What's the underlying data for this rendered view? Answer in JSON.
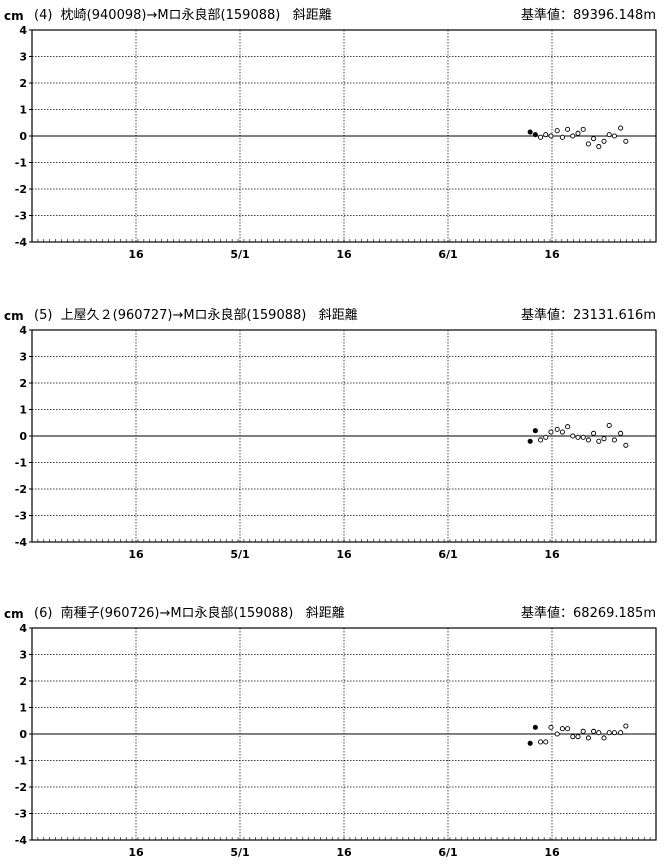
{
  "chart_data": [
    {
      "type": "scatter",
      "unit": "cm",
      "title": "(4)  枕崎(940098)→Mロ永良部(159088)   斜距離",
      "reference": "基準値：89396.148m",
      "yticks": [
        "4",
        "3",
        "2",
        "1",
        "0",
        "-1",
        "-2",
        "-3",
        "-4"
      ],
      "ylim": [
        -4,
        4
      ],
      "xlim": [
        0,
        6
      ],
      "xticks": [
        {
          "x": 1,
          "label": "16"
        },
        {
          "x": 2,
          "label": "5/1"
        },
        {
          "x": 3,
          "label": "16"
        },
        {
          "x": 4,
          "label": "6/1"
        },
        {
          "x": 5,
          "label": "16"
        }
      ],
      "grid": true,
      "series": [
        {
          "style": "filled",
          "points": [
            [
              4.79,
              0.15
            ],
            [
              4.84,
              0.05
            ]
          ]
        },
        {
          "style": "open",
          "points": [
            [
              4.89,
              -0.05
            ],
            [
              4.94,
              0.05
            ],
            [
              4.99,
              0.0
            ],
            [
              5.05,
              0.2
            ],
            [
              5.1,
              -0.05
            ],
            [
              5.15,
              0.25
            ],
            [
              5.2,
              0.0
            ],
            [
              5.25,
              0.1
            ],
            [
              5.3,
              0.25
            ],
            [
              5.35,
              -0.3
            ],
            [
              5.4,
              -0.1
            ],
            [
              5.45,
              -0.4
            ],
            [
              5.5,
              -0.2
            ],
            [
              5.55,
              0.05
            ],
            [
              5.6,
              0.0
            ],
            [
              5.66,
              0.3
            ],
            [
              5.71,
              -0.2
            ]
          ]
        }
      ]
    },
    {
      "type": "scatter",
      "unit": "cm",
      "title": "(5)  上屋久２(960727)→Mロ永良部(159088)   斜距離",
      "reference": "基準値：23131.616m",
      "yticks": [
        "4",
        "3",
        "2",
        "1",
        "0",
        "-1",
        "-2",
        "-3",
        "-4"
      ],
      "ylim": [
        -4,
        4
      ],
      "xlim": [
        0,
        6
      ],
      "xticks": [
        {
          "x": 1,
          "label": "16"
        },
        {
          "x": 2,
          "label": "5/1"
        },
        {
          "x": 3,
          "label": "16"
        },
        {
          "x": 4,
          "label": "6/1"
        },
        {
          "x": 5,
          "label": "16"
        }
      ],
      "grid": true,
      "series": [
        {
          "style": "filled",
          "points": [
            [
              4.79,
              -0.2
            ],
            [
              4.84,
              0.2
            ]
          ]
        },
        {
          "style": "open",
          "points": [
            [
              4.89,
              -0.15
            ],
            [
              4.94,
              -0.05
            ],
            [
              4.99,
              0.15
            ],
            [
              5.05,
              0.25
            ],
            [
              5.1,
              0.15
            ],
            [
              5.15,
              0.35
            ],
            [
              5.2,
              0.0
            ],
            [
              5.25,
              -0.05
            ],
            [
              5.3,
              -0.05
            ],
            [
              5.35,
              -0.15
            ],
            [
              5.4,
              0.1
            ],
            [
              5.45,
              -0.2
            ],
            [
              5.5,
              -0.1
            ],
            [
              5.55,
              0.4
            ],
            [
              5.6,
              -0.15
            ],
            [
              5.66,
              0.1
            ],
            [
              5.71,
              -0.35
            ]
          ]
        }
      ]
    },
    {
      "type": "scatter",
      "unit": "cm",
      "title": "(6)  南種子(960726)→Mロ永良部(159088)   斜距離",
      "reference": "基準値：68269.185m",
      "yticks": [
        "4",
        "3",
        "2",
        "1",
        "0",
        "-1",
        "-2",
        "-3",
        "-4"
      ],
      "ylim": [
        -4,
        4
      ],
      "xlim": [
        0,
        6
      ],
      "xticks": [
        {
          "x": 1,
          "label": "16"
        },
        {
          "x": 2,
          "label": "5/1"
        },
        {
          "x": 3,
          "label": "16"
        },
        {
          "x": 4,
          "label": "6/1"
        },
        {
          "x": 5,
          "label": "16"
        }
      ],
      "grid": true,
      "series": [
        {
          "style": "filled",
          "points": [
            [
              4.79,
              -0.35
            ],
            [
              4.84,
              0.25
            ]
          ]
        },
        {
          "style": "open",
          "points": [
            [
              4.89,
              -0.3
            ],
            [
              4.94,
              -0.3
            ],
            [
              4.99,
              0.25
            ],
            [
              5.05,
              0.0
            ],
            [
              5.1,
              0.2
            ],
            [
              5.15,
              0.2
            ],
            [
              5.2,
              -0.1
            ],
            [
              5.25,
              -0.1
            ],
            [
              5.3,
              0.1
            ],
            [
              5.35,
              -0.15
            ],
            [
              5.4,
              0.1
            ],
            [
              5.45,
              0.05
            ],
            [
              5.5,
              -0.15
            ],
            [
              5.55,
              0.05
            ],
            [
              5.6,
              0.05
            ],
            [
              5.66,
              0.05
            ],
            [
              5.71,
              0.3
            ]
          ]
        }
      ]
    }
  ]
}
